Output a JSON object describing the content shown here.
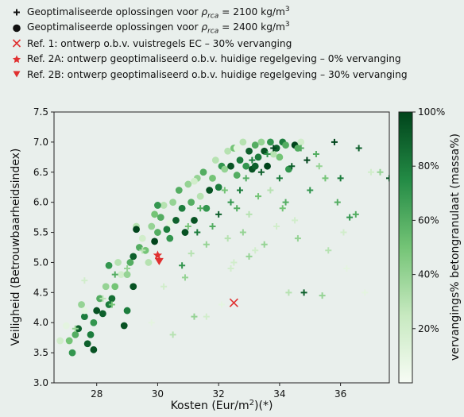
{
  "legend": {
    "items": [
      {
        "symbol": "plus",
        "color": "#111111",
        "text": "Geoptimaliseerde oplossingen voor ρrca = 2100 kg/m3"
      },
      {
        "symbol": "circle",
        "color": "#111111",
        "text": "Geoptimaliseerde oplossingen voor ρrca = 2400 kg/m3"
      },
      {
        "symbol": "x",
        "color": "#e03030",
        "text": "Ref. 1: ontwerp o.b.v. vuistregels EC – 30% vervanging"
      },
      {
        "symbol": "star",
        "color": "#e03030",
        "text": "Ref. 2A: ontwerp geoptimaliseerd o.b.v. huidige regelgeving – 0% vervanging"
      },
      {
        "symbol": "triangle",
        "color": "#e03030",
        "text": "Ref. 2B: ontwerp geoptimaliseerd o.b.v. huidige regelgeving – 30% vervanging"
      }
    ]
  },
  "axes": {
    "xlabel": "Kosten (Eur/m²)(*)",
    "ylabel": "Veiligheid (Betrouwbaarheidsindex)",
    "colorbar_label": "vervangings% betongranulaat (massa%)"
  },
  "chart_data": {
    "type": "scatter",
    "xlim": [
      26.6,
      37.6
    ],
    "ylim": [
      3.0,
      7.5
    ],
    "xticks": [
      "28",
      "30",
      "32",
      "34",
      "36"
    ],
    "yticks": [
      "3.0",
      "3.5",
      "4.0",
      "4.5",
      "5.0",
      "5.5",
      "6.0",
      "6.5",
      "7.0",
      "7.5"
    ],
    "colorbar": {
      "range": [
        0,
        100
      ],
      "ticks": [
        "20%",
        "40%",
        "60%",
        "80%",
        "100%"
      ],
      "cmap": [
        "#f7fcf5",
        "#c7e9c0",
        "#74c476",
        "#238b45",
        "#00441b"
      ]
    },
    "series": [
      {
        "marker": "circle",
        "points": [
          [
            26.8,
            3.7,
            20
          ],
          [
            27.0,
            3.95,
            10
          ],
          [
            27.1,
            3.7,
            50
          ],
          [
            27.2,
            3.5,
            70
          ],
          [
            27.3,
            3.8,
            60
          ],
          [
            27.4,
            3.9,
            90
          ],
          [
            27.5,
            4.3,
            40
          ],
          [
            27.6,
            4.1,
            80
          ],
          [
            27.7,
            3.65,
            90
          ],
          [
            27.8,
            3.8,
            80
          ],
          [
            27.9,
            3.55,
            95
          ],
          [
            27.9,
            4.0,
            70
          ],
          [
            28.0,
            4.2,
            95
          ],
          [
            28.1,
            4.4,
            60
          ],
          [
            28.2,
            4.15,
            90
          ],
          [
            28.3,
            4.6,
            40
          ],
          [
            28.4,
            4.95,
            70
          ],
          [
            28.5,
            4.4,
            85
          ],
          [
            28.6,
            4.6,
            50
          ],
          [
            28.7,
            5.0,
            30
          ],
          [
            28.8,
            4.8,
            20
          ],
          [
            28.9,
            3.95,
            95
          ],
          [
            29.0,
            4.2,
            80
          ],
          [
            29.0,
            4.8,
            40
          ],
          [
            29.1,
            5.0,
            60
          ],
          [
            29.2,
            4.6,
            95
          ],
          [
            29.2,
            5.1,
            90
          ],
          [
            29.3,
            5.6,
            30
          ],
          [
            29.4,
            5.25,
            60
          ],
          [
            29.5,
            5.4,
            20
          ],
          [
            29.6,
            5.2,
            50
          ],
          [
            29.7,
            5.0,
            30
          ],
          [
            29.8,
            5.6,
            40
          ],
          [
            29.9,
            5.35,
            100
          ],
          [
            29.9,
            5.8,
            50
          ],
          [
            30.0,
            5.5,
            60
          ],
          [
            30.1,
            5.75,
            60
          ],
          [
            30.2,
            5.95,
            30
          ],
          [
            30.3,
            5.55,
            80
          ],
          [
            30.4,
            5.4,
            70
          ],
          [
            30.5,
            6.0,
            40
          ],
          [
            30.6,
            5.7,
            90
          ],
          [
            30.7,
            6.2,
            60
          ],
          [
            30.8,
            5.9,
            80
          ],
          [
            30.9,
            5.5,
            95
          ],
          [
            31.0,
            6.3,
            40
          ],
          [
            31.1,
            6.0,
            60
          ],
          [
            31.2,
            5.7,
            95
          ],
          [
            31.3,
            6.4,
            40
          ],
          [
            31.4,
            6.1,
            30
          ],
          [
            31.5,
            6.5,
            60
          ],
          [
            31.6,
            5.9,
            70
          ],
          [
            31.7,
            6.2,
            95
          ],
          [
            31.8,
            6.4,
            50
          ],
          [
            31.9,
            6.7,
            30
          ],
          [
            32.0,
            6.25,
            80
          ],
          [
            32.1,
            6.6,
            70
          ],
          [
            32.2,
            6.55,
            40
          ],
          [
            32.3,
            6.85,
            30
          ],
          [
            32.4,
            6.6,
            95
          ],
          [
            32.5,
            6.9,
            50
          ],
          [
            32.6,
            6.45,
            60
          ],
          [
            32.7,
            6.7,
            80
          ],
          [
            32.8,
            7.0,
            30
          ],
          [
            32.9,
            6.6,
            70
          ],
          [
            33.0,
            6.85,
            90
          ],
          [
            33.1,
            6.55,
            95
          ],
          [
            33.2,
            6.95,
            60
          ],
          [
            33.3,
            6.75,
            80
          ],
          [
            33.4,
            7.0,
            40
          ],
          [
            33.5,
            6.85,
            95
          ],
          [
            33.6,
            6.6,
            100
          ],
          [
            33.7,
            7.0,
            70
          ],
          [
            33.8,
            6.8,
            30
          ],
          [
            33.9,
            6.9,
            90
          ],
          [
            34.0,
            6.75,
            50
          ],
          [
            34.1,
            7.0,
            80
          ],
          [
            34.2,
            6.95,
            60
          ],
          [
            34.3,
            6.55,
            70
          ],
          [
            34.5,
            6.95,
            100
          ],
          [
            34.6,
            6.9,
            60
          ],
          [
            34.7,
            7.0,
            20
          ],
          [
            30.4,
            5.65,
            10
          ],
          [
            29.3,
            5.55,
            100
          ],
          [
            28.4,
            4.3,
            80
          ],
          [
            27.6,
            4.2,
            10
          ],
          [
            31.2,
            6.35,
            20
          ],
          [
            32.6,
            6.9,
            10
          ],
          [
            33.2,
            6.6,
            90
          ],
          [
            30.0,
            5.95,
            70
          ]
        ]
      },
      {
        "marker": "plus",
        "points": [
          [
            27.3,
            3.9,
            40
          ],
          [
            27.6,
            4.7,
            20
          ],
          [
            28.2,
            4.4,
            30
          ],
          [
            28.5,
            4.3,
            50
          ],
          [
            28.6,
            4.8,
            60
          ],
          [
            29.0,
            4.9,
            40
          ],
          [
            29.5,
            5.2,
            30
          ],
          [
            29.8,
            4.0,
            10
          ],
          [
            30.2,
            4.6,
            20
          ],
          [
            30.5,
            3.8,
            30
          ],
          [
            30.8,
            4.95,
            70
          ],
          [
            30.9,
            4.75,
            40
          ],
          [
            31.0,
            5.6,
            50
          ],
          [
            31.1,
            5.15,
            30
          ],
          [
            31.2,
            4.1,
            40
          ],
          [
            31.3,
            5.5,
            80
          ],
          [
            31.4,
            5.9,
            60
          ],
          [
            31.6,
            4.1,
            20
          ],
          [
            31.8,
            5.6,
            60
          ],
          [
            32.0,
            5.8,
            90
          ],
          [
            32.1,
            4.3,
            10
          ],
          [
            32.2,
            6.2,
            50
          ],
          [
            32.3,
            5.4,
            30
          ],
          [
            32.4,
            6.0,
            70
          ],
          [
            32.5,
            5.0,
            20
          ],
          [
            32.6,
            5.9,
            60
          ],
          [
            32.7,
            6.2,
            80
          ],
          [
            32.8,
            5.5,
            40
          ],
          [
            32.9,
            6.4,
            60
          ],
          [
            33.0,
            5.8,
            30
          ],
          [
            33.1,
            6.7,
            80
          ],
          [
            33.2,
            5.2,
            20
          ],
          [
            33.3,
            6.1,
            50
          ],
          [
            33.4,
            6.5,
            90
          ],
          [
            33.5,
            5.3,
            40
          ],
          [
            33.6,
            6.8,
            70
          ],
          [
            33.7,
            6.2,
            30
          ],
          [
            33.8,
            6.9,
            100
          ],
          [
            33.9,
            5.6,
            20
          ],
          [
            34.0,
            6.4,
            80
          ],
          [
            34.1,
            5.9,
            50
          ],
          [
            34.2,
            6.0,
            60
          ],
          [
            34.3,
            4.5,
            30
          ],
          [
            34.4,
            6.6,
            90
          ],
          [
            34.6,
            5.4,
            40
          ],
          [
            34.7,
            6.9,
            60
          ],
          [
            34.8,
            4.5,
            90
          ],
          [
            34.9,
            6.7,
            100
          ],
          [
            35.0,
            6.2,
            70
          ],
          [
            35.2,
            6.8,
            60
          ],
          [
            35.4,
            4.45,
            40
          ],
          [
            35.5,
            6.4,
            50
          ],
          [
            35.6,
            5.2,
            30
          ],
          [
            35.8,
            7.0,
            100
          ],
          [
            35.9,
            6.0,
            60
          ],
          [
            36.0,
            6.4,
            80
          ],
          [
            36.1,
            5.5,
            20
          ],
          [
            36.2,
            4.9,
            10
          ],
          [
            36.5,
            5.8,
            60
          ],
          [
            36.6,
            6.9,
            90
          ],
          [
            37.0,
            6.5,
            20
          ],
          [
            37.3,
            6.5,
            40
          ],
          [
            37.6,
            6.4,
            95
          ],
          [
            36.8,
            4.5,
            10
          ],
          [
            36.3,
            5.75,
            70
          ],
          [
            35.3,
            6.6,
            40
          ],
          [
            34.5,
            5.7,
            20
          ],
          [
            33.0,
            5.1,
            40
          ],
          [
            32.4,
            4.9,
            20
          ],
          [
            31.6,
            5.3,
            40
          ]
        ]
      }
    ],
    "references": [
      {
        "marker": "x",
        "x": 32.5,
        "y": 4.33,
        "color": "#e03030"
      },
      {
        "marker": "star",
        "x": 30.0,
        "y": 5.12,
        "color": "#e03030"
      },
      {
        "marker": "triangle",
        "x": 30.05,
        "y": 5.02,
        "color": "#e03030"
      }
    ]
  }
}
